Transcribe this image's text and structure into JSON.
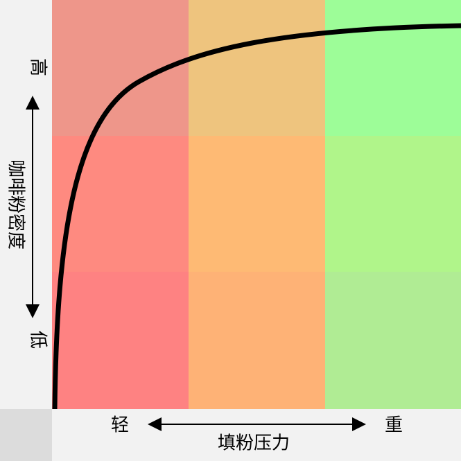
{
  "y_axis": {
    "high": "高",
    "low": "低",
    "label": "咖啡粉密度"
  },
  "x_axis": {
    "low": "轻",
    "high": "重",
    "label": "填粉压力"
  }
}
